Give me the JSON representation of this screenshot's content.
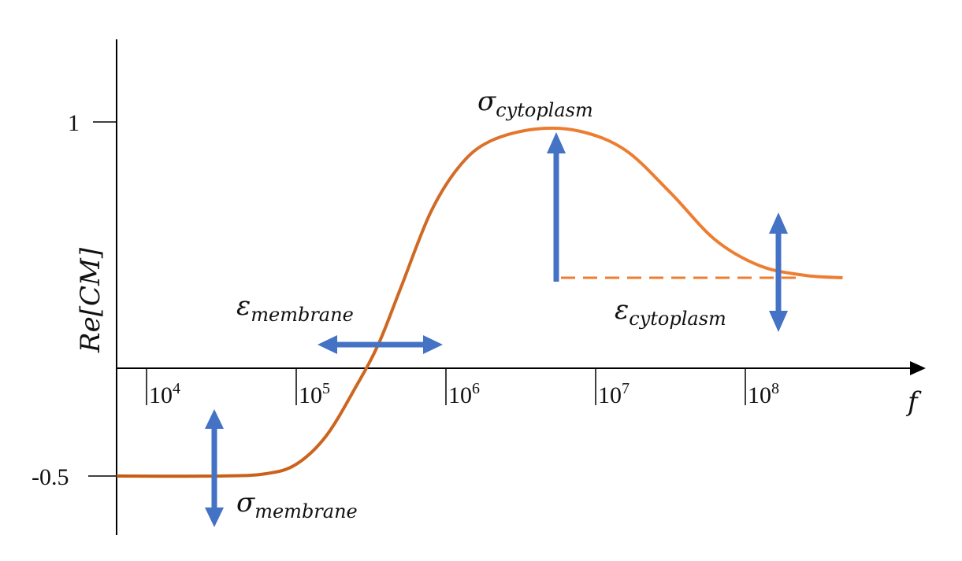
{
  "chart_data": {
    "type": "line",
    "title": "",
    "xlabel": "f",
    "ylabel": "Re[CM]",
    "x_scale": "log",
    "x_ticks": [
      {
        "base": "10",
        "exp": "4"
      },
      {
        "base": "10",
        "exp": "5"
      },
      {
        "base": "10",
        "exp": "6"
      },
      {
        "base": "10",
        "exp": "7"
      },
      {
        "base": "10",
        "exp": "8"
      }
    ],
    "y_ticks": [
      "1",
      "-0.5"
    ],
    "y_tick_values": [
      1,
      -0.5
    ],
    "grid": false,
    "series": [
      {
        "color": "#ed7d31",
        "x_log10": [
          3.8,
          4.5,
          4.8,
          5.0,
          5.2,
          5.4,
          5.55,
          5.7,
          5.9,
          6.1,
          6.3,
          6.6,
          6.9,
          7.2,
          7.5,
          7.8,
          8.1,
          8.4,
          8.65
        ],
        "y": [
          -0.5,
          -0.5,
          -0.49,
          -0.45,
          -0.33,
          -0.12,
          0.06,
          0.3,
          0.62,
          0.82,
          0.92,
          0.97,
          0.96,
          0.88,
          0.7,
          0.5,
          0.39,
          0.35,
          0.34
        ]
      }
    ],
    "reference_line": {
      "y": 0.34,
      "style": "dashed",
      "color": "#ed7d31"
    },
    "annotations": [
      {
        "symbol": "σ",
        "subscript": "membrane"
      },
      {
        "symbol": "ε",
        "subscript": "membrane"
      },
      {
        "symbol": "σ",
        "subscript": "cytoplasm"
      },
      {
        "symbol": "ε",
        "subscript": "cytoplasm"
      }
    ],
    "arrow_color": "#4472c4",
    "axis_color": "#000000"
  }
}
